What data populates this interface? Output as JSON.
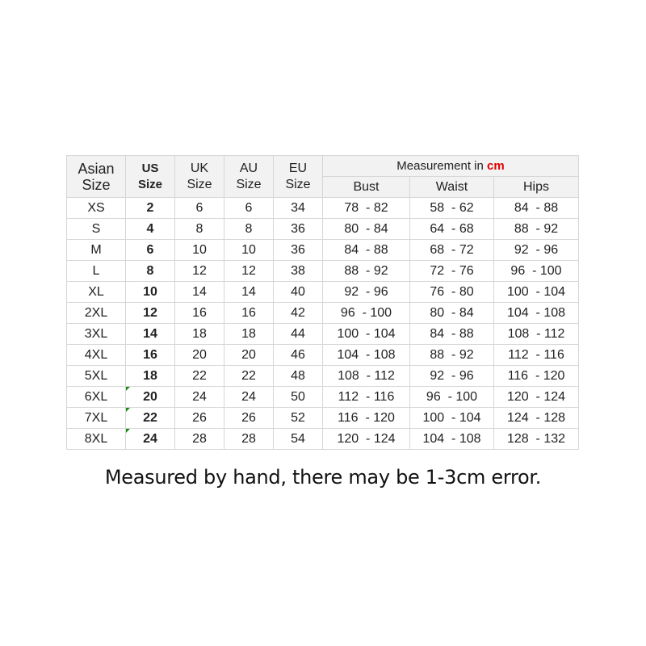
{
  "header": {
    "asian": [
      "Asian",
      "Size"
    ],
    "us": [
      "US",
      "Size"
    ],
    "uk": [
      "UK",
      "Size"
    ],
    "au": [
      "AU",
      "Size"
    ],
    "eu": [
      "EU",
      "Size"
    ],
    "measurement": "Measurement in",
    "unit": "cm",
    "bust": "Bust",
    "waist": "Waist",
    "hips": "Hips"
  },
  "accent_color": "#e00000",
  "rows": [
    {
      "asian": "XS",
      "us": "2",
      "uk": "6",
      "au": "6",
      "eu": "34",
      "bust": "78  - 82",
      "waist": "58  - 62",
      "hips": "84  - 88",
      "flag": false
    },
    {
      "asian": "S",
      "us": "4",
      "uk": "8",
      "au": "8",
      "eu": "36",
      "bust": "80  - 84",
      "waist": "64  - 68",
      "hips": "88  - 92",
      "flag": false
    },
    {
      "asian": "M",
      "us": "6",
      "uk": "10",
      "au": "10",
      "eu": "36",
      "bust": "84  - 88",
      "waist": "68  - 72",
      "hips": "92  - 96",
      "flag": false
    },
    {
      "asian": "L",
      "us": "8",
      "uk": "12",
      "au": "12",
      "eu": "38",
      "bust": "88  - 92",
      "waist": "72  - 76",
      "hips": "96  - 100",
      "flag": false
    },
    {
      "asian": "XL",
      "us": "10",
      "uk": "14",
      "au": "14",
      "eu": "40",
      "bust": "92  - 96",
      "waist": "76  - 80",
      "hips": "100  - 104",
      "flag": false
    },
    {
      "asian": "2XL",
      "us": "12",
      "uk": "16",
      "au": "16",
      "eu": "42",
      "bust": "96  - 100",
      "waist": "80  - 84",
      "hips": "104  - 108",
      "flag": false
    },
    {
      "asian": "3XL",
      "us": "14",
      "uk": "18",
      "au": "18",
      "eu": "44",
      "bust": "100  - 104",
      "waist": "84  - 88",
      "hips": "108  - 112",
      "flag": false
    },
    {
      "asian": "4XL",
      "us": "16",
      "uk": "20",
      "au": "20",
      "eu": "46",
      "bust": "104  - 108",
      "waist": "88  - 92",
      "hips": "112  - 116",
      "flag": false
    },
    {
      "asian": "5XL",
      "us": "18",
      "uk": "22",
      "au": "22",
      "eu": "48",
      "bust": "108  - 112",
      "waist": "92  - 96",
      "hips": "116  - 120",
      "flag": false
    },
    {
      "asian": "6XL",
      "us": "20",
      "uk": "24",
      "au": "24",
      "eu": "50",
      "bust": "112  - 116",
      "waist": "96  - 100",
      "hips": "120  - 124",
      "flag": true
    },
    {
      "asian": "7XL",
      "us": "22",
      "uk": "26",
      "au": "26",
      "eu": "52",
      "bust": "116  - 120",
      "waist": "100  - 104",
      "hips": "124  - 128",
      "flag": true
    },
    {
      "asian": "8XL",
      "us": "24",
      "uk": "28",
      "au": "28",
      "eu": "54",
      "bust": "120  - 124",
      "waist": "104  - 108",
      "hips": "128  - 132",
      "flag": true
    }
  ],
  "note": "Measured by hand, there may be 1-3cm error."
}
